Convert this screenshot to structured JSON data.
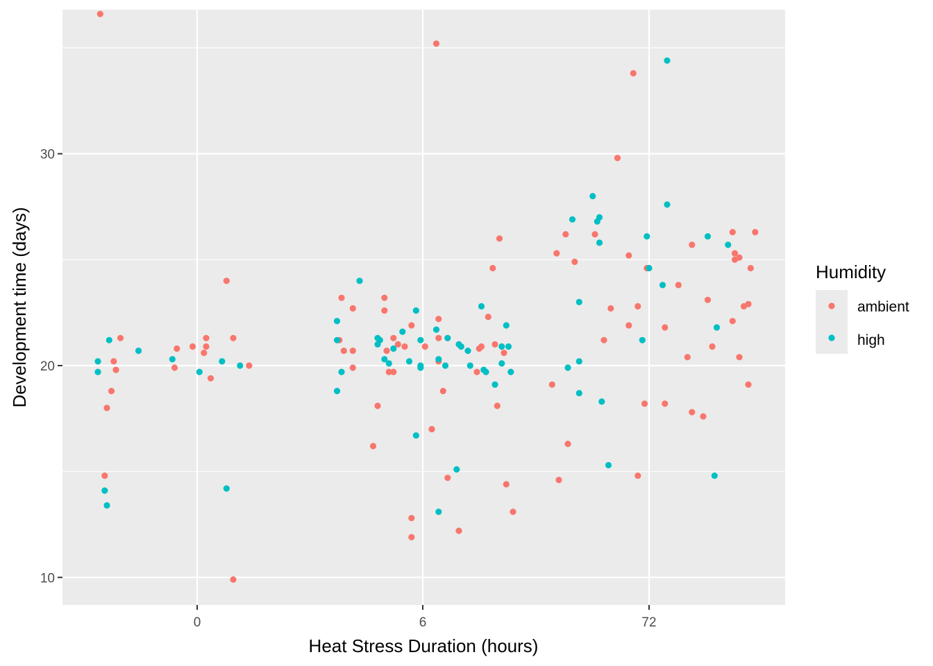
{
  "chart_data": {
    "type": "scatter",
    "xlabel": "Heat Stress Duration (hours)",
    "ylabel": "Development time (days)",
    "x_categories": [
      "0",
      "6",
      "72"
    ],
    "y_ticks": [
      10,
      20,
      30
    ],
    "ylim": [
      8.7,
      36.8
    ],
    "jitter_range": [
      -0.45,
      0.45
    ],
    "grid": true,
    "legend": {
      "title": "Humidity",
      "position": "right",
      "entries": [
        {
          "name": "ambient",
          "color": "#F8766D"
        },
        {
          "name": "high",
          "color": "#00BFC4"
        }
      ]
    },
    "series": [
      {
        "name": "ambient",
        "color": "#F8766D",
        "points": [
          {
            "category": "0",
            "offset": -0.43,
            "y": 36.6
          },
          {
            "category": "0",
            "offset": -0.34,
            "y": 21.3
          },
          {
            "category": "0",
            "offset": -0.36,
            "y": 19.8
          },
          {
            "category": "0",
            "offset": -0.37,
            "y": 20.2
          },
          {
            "category": "0",
            "offset": -0.38,
            "y": 18.8
          },
          {
            "category": "0",
            "offset": -0.4,
            "y": 18.0
          },
          {
            "category": "0",
            "offset": -0.41,
            "y": 14.8
          },
          {
            "category": "0",
            "offset": -0.09,
            "y": 20.8
          },
          {
            "category": "0",
            "offset": -0.1,
            "y": 19.9
          },
          {
            "category": "0",
            "offset": -0.02,
            "y": 20.9
          },
          {
            "category": "0",
            "offset": 0.03,
            "y": 20.6
          },
          {
            "category": "0",
            "offset": 0.04,
            "y": 21.3
          },
          {
            "category": "0",
            "offset": 0.04,
            "y": 20.9
          },
          {
            "category": "0",
            "offset": 0.06,
            "y": 19.4
          },
          {
            "category": "0",
            "offset": 0.13,
            "y": 24.0
          },
          {
            "category": "0",
            "offset": 0.16,
            "y": 21.3
          },
          {
            "category": "0",
            "offset": 0.16,
            "y": 9.9
          },
          {
            "category": "0",
            "offset": 0.23,
            "y": 20.0
          },
          {
            "category": "6",
            "offset": -0.36,
            "y": 23.2
          },
          {
            "category": "6",
            "offset": -0.37,
            "y": 21.2
          },
          {
            "category": "6",
            "offset": -0.35,
            "y": 20.7
          },
          {
            "category": "6",
            "offset": -0.31,
            "y": 22.7
          },
          {
            "category": "6",
            "offset": -0.31,
            "y": 20.7
          },
          {
            "category": "6",
            "offset": -0.31,
            "y": 19.9
          },
          {
            "category": "6",
            "offset": -0.22,
            "y": 16.2
          },
          {
            "category": "6",
            "offset": -0.2,
            "y": 18.1
          },
          {
            "category": "6",
            "offset": -0.17,
            "y": 23.2
          },
          {
            "category": "6",
            "offset": -0.17,
            "y": 22.6
          },
          {
            "category": "6",
            "offset": -0.16,
            "y": 20.7
          },
          {
            "category": "6",
            "offset": -0.15,
            "y": 19.7
          },
          {
            "category": "6",
            "offset": -0.13,
            "y": 21.3
          },
          {
            "category": "6",
            "offset": -0.13,
            "y": 19.7
          },
          {
            "category": "6",
            "offset": -0.11,
            "y": 21.0
          },
          {
            "category": "6",
            "offset": -0.08,
            "y": 20.9
          },
          {
            "category": "6",
            "offset": -0.05,
            "y": 21.9
          },
          {
            "category": "6",
            "offset": -0.05,
            "y": 12.8
          },
          {
            "category": "6",
            "offset": -0.05,
            "y": 11.9
          },
          {
            "category": "6",
            "offset": 0.01,
            "y": 20.9
          },
          {
            "category": "6",
            "offset": 0.04,
            "y": 17.0
          },
          {
            "category": "6",
            "offset": 0.06,
            "y": 35.2
          },
          {
            "category": "6",
            "offset": 0.07,
            "y": 22.2
          },
          {
            "category": "6",
            "offset": 0.07,
            "y": 21.3
          },
          {
            "category": "6",
            "offset": 0.07,
            "y": 20.2
          },
          {
            "category": "6",
            "offset": 0.09,
            "y": 18.8
          },
          {
            "category": "6",
            "offset": 0.11,
            "y": 21.3
          },
          {
            "category": "6",
            "offset": 0.11,
            "y": 14.7
          },
          {
            "category": "6",
            "offset": 0.16,
            "y": 12.2
          },
          {
            "category": "6",
            "offset": 0.25,
            "y": 20.8
          },
          {
            "category": "6",
            "offset": 0.26,
            "y": 20.9
          },
          {
            "category": "6",
            "offset": 0.24,
            "y": 19.7
          },
          {
            "category": "6",
            "offset": 0.29,
            "y": 22.3
          },
          {
            "category": "6",
            "offset": 0.31,
            "y": 24.6
          },
          {
            "category": "6",
            "offset": 0.32,
            "y": 21.0
          },
          {
            "category": "6",
            "offset": 0.33,
            "y": 18.1
          },
          {
            "category": "6",
            "offset": 0.34,
            "y": 26.0
          },
          {
            "category": "6",
            "offset": 0.36,
            "y": 20.6
          },
          {
            "category": "6",
            "offset": 0.37,
            "y": 14.4
          },
          {
            "category": "6",
            "offset": 0.4,
            "y": 13.1
          },
          {
            "category": "72",
            "offset": -0.43,
            "y": 19.1
          },
          {
            "category": "72",
            "offset": -0.41,
            "y": 25.3
          },
          {
            "category": "72",
            "offset": -0.4,
            "y": 14.6
          },
          {
            "category": "72",
            "offset": -0.37,
            "y": 26.2
          },
          {
            "category": "72",
            "offset": -0.36,
            "y": 16.3
          },
          {
            "category": "72",
            "offset": -0.33,
            "y": 24.9
          },
          {
            "category": "72",
            "offset": -0.24,
            "y": 26.2
          },
          {
            "category": "72",
            "offset": -0.2,
            "y": 21.2
          },
          {
            "category": "72",
            "offset": -0.17,
            "y": 22.7
          },
          {
            "category": "72",
            "offset": -0.14,
            "y": 29.8
          },
          {
            "category": "72",
            "offset": -0.09,
            "y": 25.2
          },
          {
            "category": "72",
            "offset": -0.09,
            "y": 21.9
          },
          {
            "category": "72",
            "offset": -0.07,
            "y": 33.8
          },
          {
            "category": "72",
            "offset": -0.05,
            "y": 22.8
          },
          {
            "category": "72",
            "offset": -0.05,
            "y": 14.8
          },
          {
            "category": "72",
            "offset": -0.02,
            "y": 18.2
          },
          {
            "category": "72",
            "offset": -0.01,
            "y": 24.6
          },
          {
            "category": "72",
            "offset": 0.07,
            "y": 18.2
          },
          {
            "category": "72",
            "offset": 0.07,
            "y": 21.8
          },
          {
            "category": "72",
            "offset": 0.13,
            "y": 23.8
          },
          {
            "category": "72",
            "offset": 0.17,
            "y": 20.4
          },
          {
            "category": "72",
            "offset": 0.19,
            "y": 25.7
          },
          {
            "category": "72",
            "offset": 0.19,
            "y": 17.8
          },
          {
            "category": "72",
            "offset": 0.24,
            "y": 17.6
          },
          {
            "category": "72",
            "offset": 0.26,
            "y": 23.1
          },
          {
            "category": "72",
            "offset": 0.28,
            "y": 20.9
          },
          {
            "category": "72",
            "offset": 0.37,
            "y": 22.1
          },
          {
            "category": "72",
            "offset": 0.37,
            "y": 26.3
          },
          {
            "category": "72",
            "offset": 0.38,
            "y": 25.3
          },
          {
            "category": "72",
            "offset": 0.38,
            "y": 25.0
          },
          {
            "category": "72",
            "offset": 0.4,
            "y": 25.1
          },
          {
            "category": "72",
            "offset": 0.4,
            "y": 20.4
          },
          {
            "category": "72",
            "offset": 0.42,
            "y": 22.8
          },
          {
            "category": "72",
            "offset": 0.44,
            "y": 22.9
          },
          {
            "category": "72",
            "offset": 0.44,
            "y": 19.1
          },
          {
            "category": "72",
            "offset": 0.45,
            "y": 24.6
          },
          {
            "category": "72",
            "offset": 0.47,
            "y": 26.3
          }
        ]
      },
      {
        "name": "high",
        "color": "#00BFC4",
        "points": [
          {
            "category": "0",
            "offset": -0.44,
            "y": 20.2
          },
          {
            "category": "0",
            "offset": -0.44,
            "y": 19.7
          },
          {
            "category": "0",
            "offset": -0.39,
            "y": 21.2
          },
          {
            "category": "0",
            "offset": -0.41,
            "y": 14.1
          },
          {
            "category": "0",
            "offset": -0.4,
            "y": 13.4
          },
          {
            "category": "0",
            "offset": -0.26,
            "y": 20.7
          },
          {
            "category": "0",
            "offset": -0.11,
            "y": 20.3
          },
          {
            "category": "0",
            "offset": 0.01,
            "y": 19.7
          },
          {
            "category": "0",
            "offset": 0.11,
            "y": 20.2
          },
          {
            "category": "0",
            "offset": 0.13,
            "y": 14.2
          },
          {
            "category": "0",
            "offset": 0.19,
            "y": 20.0
          },
          {
            "category": "6",
            "offset": -0.38,
            "y": 22.1
          },
          {
            "category": "6",
            "offset": -0.38,
            "y": 21.2
          },
          {
            "category": "6",
            "offset": -0.38,
            "y": 18.8
          },
          {
            "category": "6",
            "offset": -0.36,
            "y": 19.7
          },
          {
            "category": "6",
            "offset": -0.28,
            "y": 24.0
          },
          {
            "category": "6",
            "offset": -0.2,
            "y": 21.3
          },
          {
            "category": "6",
            "offset": -0.2,
            "y": 21.0
          },
          {
            "category": "6",
            "offset": -0.19,
            "y": 21.2
          },
          {
            "category": "6",
            "offset": -0.17,
            "y": 20.3
          },
          {
            "category": "6",
            "offset": -0.15,
            "y": 20.1
          },
          {
            "category": "6",
            "offset": -0.13,
            "y": 20.8
          },
          {
            "category": "6",
            "offset": -0.09,
            "y": 21.6
          },
          {
            "category": "6",
            "offset": -0.06,
            "y": 20.2
          },
          {
            "category": "6",
            "offset": -0.03,
            "y": 22.6
          },
          {
            "category": "6",
            "offset": -0.03,
            "y": 16.7
          },
          {
            "category": "6",
            "offset": -0.01,
            "y": 21.2
          },
          {
            "category": "6",
            "offset": -0.01,
            "y": 20.0
          },
          {
            "category": "6",
            "offset": -0.01,
            "y": 19.9
          },
          {
            "category": "6",
            "offset": 0.06,
            "y": 21.7
          },
          {
            "category": "6",
            "offset": 0.07,
            "y": 20.3
          },
          {
            "category": "6",
            "offset": 0.07,
            "y": 13.1
          },
          {
            "category": "6",
            "offset": 0.1,
            "y": 20.0
          },
          {
            "category": "6",
            "offset": 0.11,
            "y": 21.3
          },
          {
            "category": "6",
            "offset": 0.15,
            "y": 15.1
          },
          {
            "category": "6",
            "offset": 0.16,
            "y": 21.0
          },
          {
            "category": "6",
            "offset": 0.17,
            "y": 20.9
          },
          {
            "category": "6",
            "offset": 0.2,
            "y": 20.7
          },
          {
            "category": "6",
            "offset": 0.21,
            "y": 20.0
          },
          {
            "category": "6",
            "offset": 0.26,
            "y": 22.8
          },
          {
            "category": "6",
            "offset": 0.27,
            "y": 19.8
          },
          {
            "category": "6",
            "offset": 0.28,
            "y": 19.7
          },
          {
            "category": "6",
            "offset": 0.32,
            "y": 19.1
          },
          {
            "category": "6",
            "offset": 0.35,
            "y": 20.9
          },
          {
            "category": "6",
            "offset": 0.35,
            "y": 20.1
          },
          {
            "category": "6",
            "offset": 0.37,
            "y": 21.9
          },
          {
            "category": "6",
            "offset": 0.38,
            "y": 20.9
          },
          {
            "category": "6",
            "offset": 0.39,
            "y": 19.7
          },
          {
            "category": "72",
            "offset": -0.34,
            "y": 26.9
          },
          {
            "category": "72",
            "offset": -0.36,
            "y": 19.9
          },
          {
            "category": "72",
            "offset": -0.31,
            "y": 23.0
          },
          {
            "category": "72",
            "offset": -0.31,
            "y": 20.2
          },
          {
            "category": "72",
            "offset": -0.31,
            "y": 18.7
          },
          {
            "category": "72",
            "offset": -0.25,
            "y": 28.0
          },
          {
            "category": "72",
            "offset": -0.23,
            "y": 26.8
          },
          {
            "category": "72",
            "offset": -0.22,
            "y": 27.0
          },
          {
            "category": "72",
            "offset": -0.22,
            "y": 25.8
          },
          {
            "category": "72",
            "offset": -0.21,
            "y": 18.3
          },
          {
            "category": "72",
            "offset": -0.18,
            "y": 15.3
          },
          {
            "category": "72",
            "offset": -0.03,
            "y": 21.2
          },
          {
            "category": "72",
            "offset": -0.01,
            "y": 26.1
          },
          {
            "category": "72",
            "offset": 0.0,
            "y": 24.6
          },
          {
            "category": "72",
            "offset": 0.06,
            "y": 23.8
          },
          {
            "category": "72",
            "offset": 0.08,
            "y": 27.6
          },
          {
            "category": "72",
            "offset": 0.08,
            "y": 34.4
          },
          {
            "category": "72",
            "offset": 0.26,
            "y": 26.1
          },
          {
            "category": "72",
            "offset": 0.29,
            "y": 14.8
          },
          {
            "category": "72",
            "offset": 0.3,
            "y": 21.8
          },
          {
            "category": "72",
            "offset": 0.35,
            "y": 25.7
          }
        ]
      }
    ]
  }
}
